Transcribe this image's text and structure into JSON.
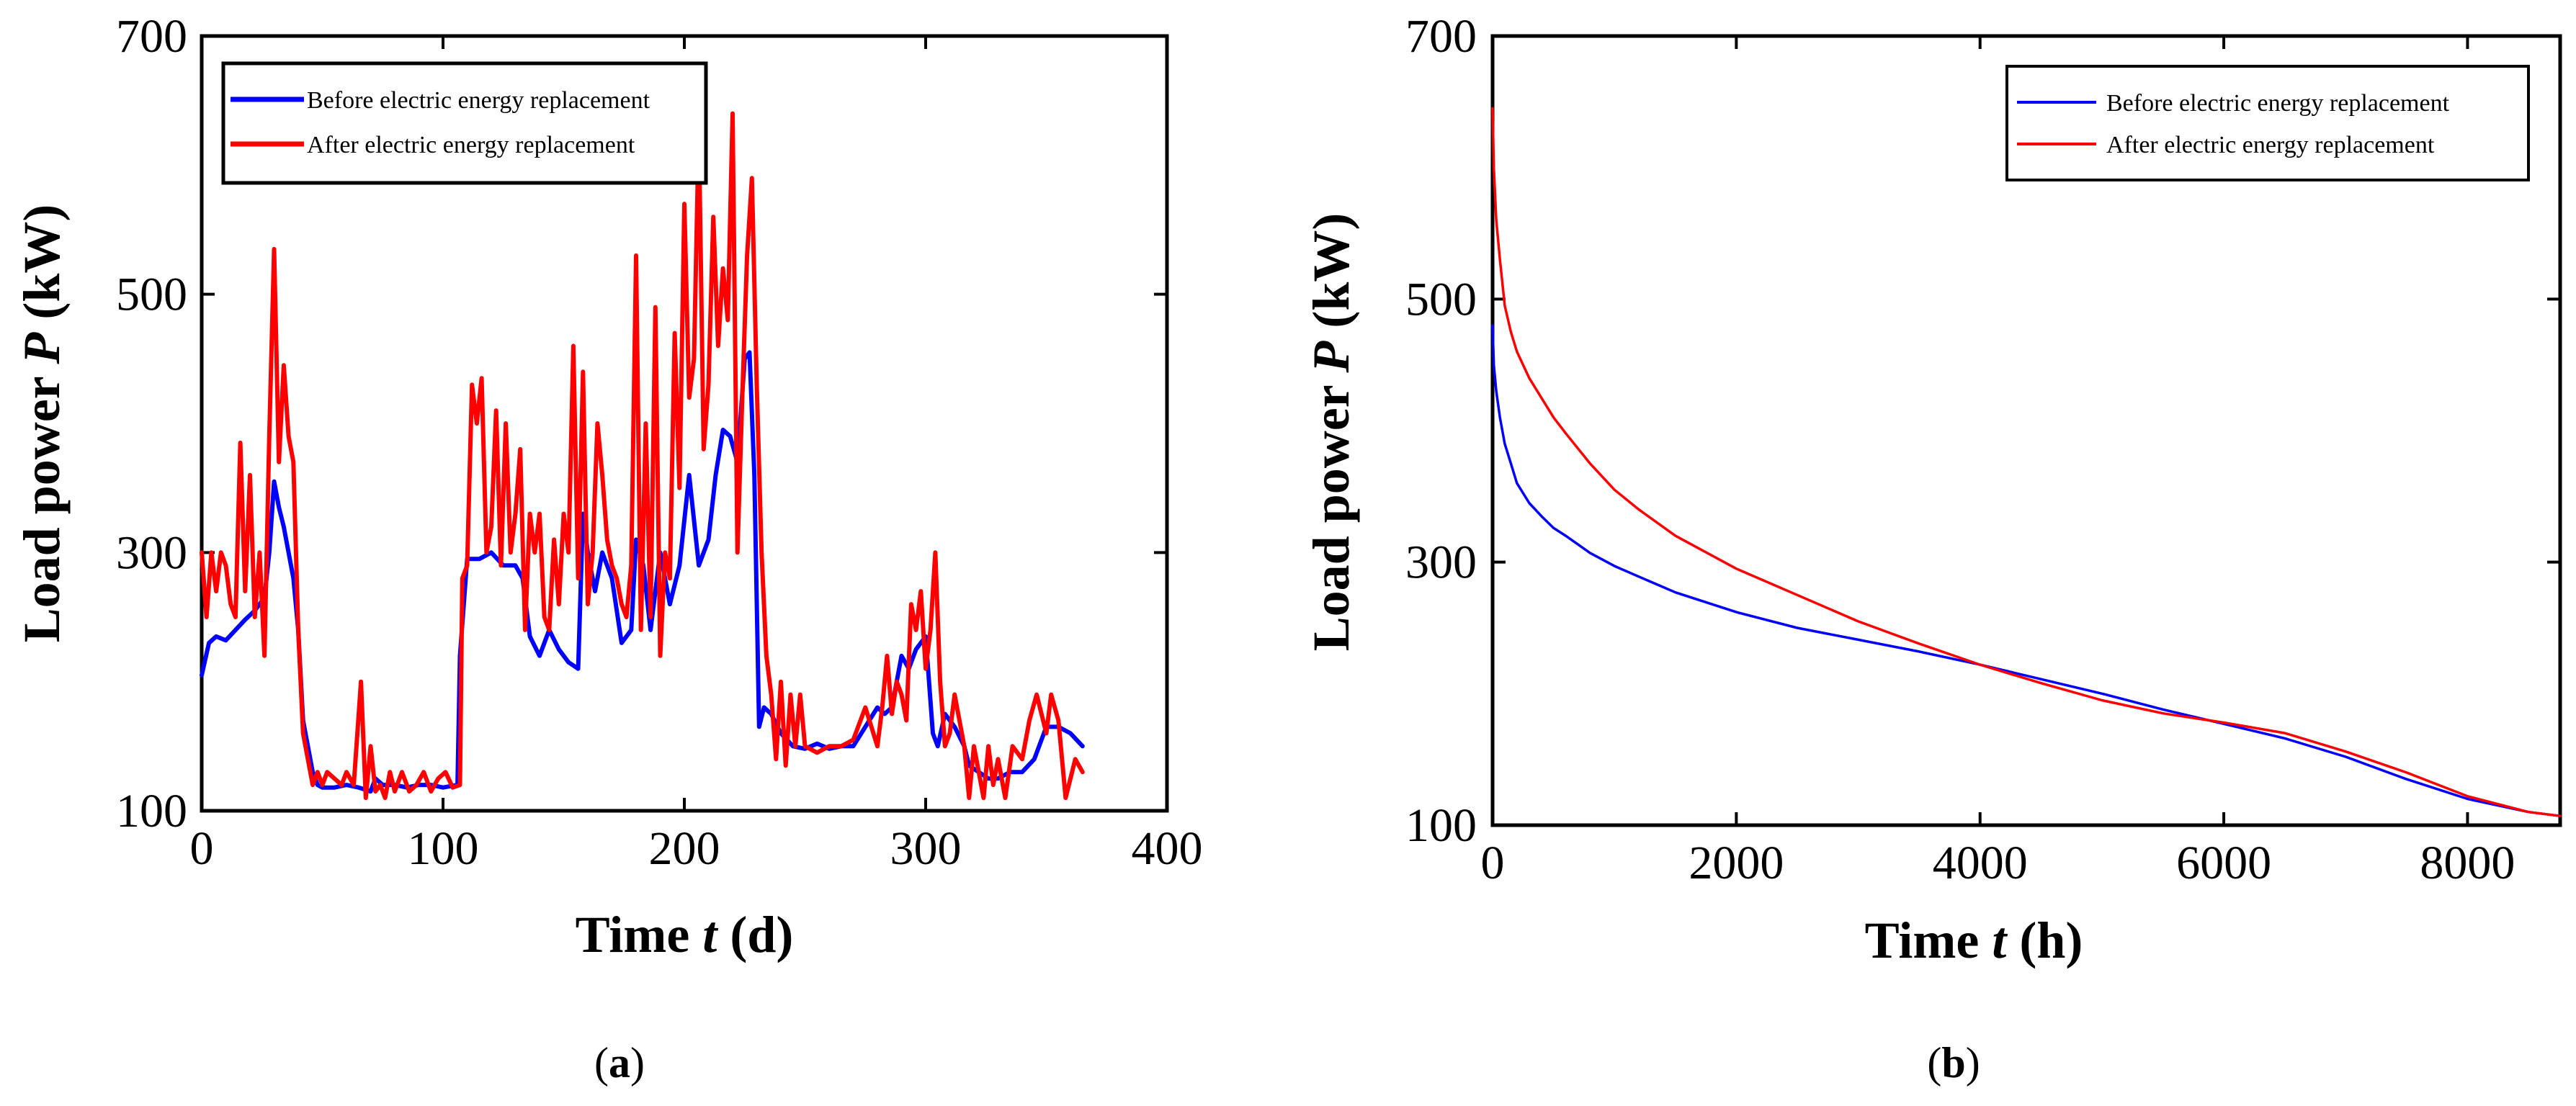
{
  "colors": {
    "before": "#0000ff",
    "after": "#ff0000",
    "axis": "#000000"
  },
  "chart_data": [
    {
      "type": "line",
      "caption": {
        "open": "(",
        "letter": "a",
        "close": ")"
      },
      "title": "",
      "xlabel": {
        "prefix": "Time ",
        "var": "t",
        "suffix": " (d)"
      },
      "ylabel": {
        "prefix": "Load power ",
        "var": "P",
        "suffix": " (kW)"
      },
      "xlim": [
        0,
        400
      ],
      "ylim": [
        100,
        700
      ],
      "xticks": [
        0,
        100,
        200,
        300,
        400
      ],
      "yticks": [
        100,
        300,
        500,
        700
      ],
      "legend_position": "top-left",
      "series": [
        {
          "name": "Before electric energy replacement",
          "color": "#0000ff",
          "x": [
            0,
            3,
            6,
            10,
            14,
            18,
            22,
            26,
            28,
            30,
            32,
            34,
            36,
            38,
            40,
            42,
            44,
            46,
            48,
            50,
            55,
            60,
            65,
            70,
            72,
            75,
            80,
            85,
            90,
            95,
            100,
            106,
            107,
            110,
            115,
            120,
            125,
            130,
            133,
            136,
            140,
            144,
            148,
            152,
            156,
            158,
            160,
            163,
            166,
            170,
            174,
            178,
            180,
            183,
            186,
            190,
            194,
            198,
            202,
            206,
            210,
            213,
            216,
            219,
            222,
            225,
            227,
            229,
            231,
            233,
            236,
            240,
            245,
            250,
            255,
            260,
            265,
            270,
            275,
            280,
            283,
            286,
            290,
            293,
            296,
            300,
            303,
            305,
            308,
            312,
            316,
            318,
            322,
            326,
            330,
            335,
            340,
            345,
            350,
            355,
            360,
            365
          ],
          "y": [
            205,
            230,
            235,
            232,
            240,
            248,
            255,
            265,
            300,
            355,
            335,
            320,
            300,
            280,
            240,
            170,
            150,
            130,
            120,
            118,
            118,
            120,
            118,
            115,
            125,
            120,
            120,
            118,
            120,
            120,
            118,
            120,
            220,
            295,
            295,
            300,
            290,
            290,
            280,
            235,
            220,
            240,
            225,
            215,
            210,
            330,
            300,
            270,
            300,
            280,
            230,
            240,
            310,
            290,
            240,
            300,
            260,
            290,
            360,
            290,
            310,
            360,
            395,
            390,
            370,
            450,
            455,
            360,
            165,
            180,
            175,
            160,
            150,
            148,
            152,
            148,
            150,
            150,
            165,
            180,
            175,
            180,
            220,
            210,
            225,
            235,
            160,
            150,
            175,
            165,
            150,
            135,
            130,
            125,
            125,
            130,
            130,
            140,
            165,
            165,
            160,
            150
          ]
        },
        {
          "name": "After electric energy replacement",
          "color": "#ff0000",
          "x": [
            0,
            2,
            4,
            6,
            8,
            10,
            12,
            14,
            16,
            18,
            20,
            22,
            24,
            26,
            28,
            30,
            32,
            34,
            36,
            38,
            40,
            42,
            44,
            46,
            48,
            50,
            52,
            55,
            58,
            60,
            63,
            66,
            68,
            70,
            72,
            74,
            76,
            78,
            80,
            83,
            86,
            89,
            92,
            95,
            98,
            101,
            104,
            107,
            108,
            110,
            112,
            114,
            116,
            118,
            120,
            122,
            124,
            126,
            128,
            130,
            132,
            134,
            136,
            138,
            140,
            142,
            144,
            146,
            148,
            150,
            152,
            154,
            156,
            158,
            160,
            162,
            164,
            166,
            168,
            170,
            172,
            174,
            176,
            178,
            180,
            182,
            184,
            186,
            188,
            190,
            192,
            194,
            196,
            198,
            200,
            202,
            204,
            206,
            208,
            210,
            212,
            214,
            216,
            218,
            220,
            222,
            224,
            226,
            228,
            230,
            232,
            234,
            236,
            238,
            240,
            242,
            244,
            246,
            248,
            250,
            255,
            260,
            265,
            270,
            275,
            280,
            282,
            284,
            286,
            288,
            290,
            292,
            294,
            296,
            298,
            300,
            302,
            304,
            306,
            308,
            310,
            312,
            314,
            316,
            318,
            320,
            322,
            324,
            326,
            328,
            330,
            333,
            336,
            340,
            343,
            346,
            350,
            352,
            355,
            358,
            362,
            365
          ],
          "y": [
            300,
            250,
            300,
            270,
            300,
            290,
            260,
            250,
            385,
            270,
            360,
            250,
            300,
            220,
            390,
            535,
            370,
            445,
            390,
            370,
            240,
            160,
            140,
            120,
            130,
            120,
            130,
            125,
            120,
            130,
            120,
            200,
            110,
            150,
            115,
            120,
            110,
            130,
            115,
            130,
            115,
            120,
            130,
            115,
            125,
            130,
            118,
            120,
            280,
            290,
            430,
            400,
            435,
            300,
            320,
            410,
            290,
            400,
            300,
            330,
            380,
            240,
            330,
            300,
            330,
            250,
            240,
            310,
            260,
            330,
            300,
            460,
            280,
            440,
            260,
            300,
            400,
            360,
            310,
            290,
            280,
            260,
            250,
            290,
            530,
            240,
            400,
            250,
            490,
            220,
            300,
            280,
            470,
            350,
            570,
            420,
            450,
            630,
            380,
            430,
            560,
            460,
            520,
            480,
            640,
            300,
            420,
            530,
            590,
            430,
            300,
            220,
            190,
            140,
            200,
            135,
            190,
            150,
            190,
            150,
            145,
            150,
            150,
            155,
            180,
            150,
            180,
            220,
            175,
            200,
            190,
            170,
            260,
            240,
            270,
            210,
            240,
            300,
            200,
            150,
            160,
            190,
            170,
            150,
            110,
            150,
            130,
            110,
            150,
            120,
            140,
            110,
            150,
            140,
            170,
            190,
            160,
            190,
            170,
            110,
            140,
            130
          ]
        }
      ]
    },
    {
      "type": "line",
      "caption": {
        "open": "(",
        "letter": "b",
        "close": ")"
      },
      "title": "",
      "xlabel": {
        "prefix": "Time ",
        "var": "t",
        "suffix": " (h)"
      },
      "ylabel": {
        "prefix": "Load power ",
        "var": "P",
        "suffix": " (kW)"
      },
      "xlim": [
        0,
        8760
      ],
      "ylim": [
        100,
        700
      ],
      "xticks": [
        0,
        2000,
        4000,
        6000,
        8000
      ],
      "yticks": [
        100,
        300,
        500,
        700
      ],
      "legend_position": "top-right",
      "series": [
        {
          "name": "Before electric energy replacement",
          "color": "#0000ff",
          "x": [
            0,
            10,
            30,
            60,
            100,
            150,
            200,
            300,
            400,
            500,
            600,
            800,
            1000,
            1200,
            1500,
            2000,
            2500,
            3000,
            3500,
            4000,
            4500,
            5000,
            5500,
            6000,
            6500,
            7000,
            7500,
            8000,
            8500,
            8760
          ],
          "y": [
            480,
            450,
            430,
            410,
            390,
            375,
            360,
            345,
            335,
            326,
            320,
            307,
            297,
            289,
            277,
            262,
            250,
            241,
            232,
            222,
            211,
            200,
            188,
            177,
            166,
            152,
            135,
            120,
            110,
            107
          ]
        },
        {
          "name": "After electric energy replacement",
          "color": "#ff0000",
          "x": [
            0,
            10,
            30,
            60,
            100,
            150,
            200,
            300,
            400,
            500,
            600,
            800,
            1000,
            1200,
            1500,
            2000,
            2500,
            3000,
            3500,
            4000,
            4500,
            5000,
            5500,
            6000,
            6500,
            7000,
            7500,
            8000,
            8500,
            8760
          ],
          "y": [
            645,
            600,
            560,
            530,
            495,
            475,
            460,
            440,
            425,
            410,
            398,
            375,
            355,
            340,
            320,
            295,
            275,
            255,
            238,
            222,
            208,
            195,
            185,
            178,
            170,
            156,
            140,
            122,
            110,
            107
          ]
        }
      ]
    }
  ]
}
